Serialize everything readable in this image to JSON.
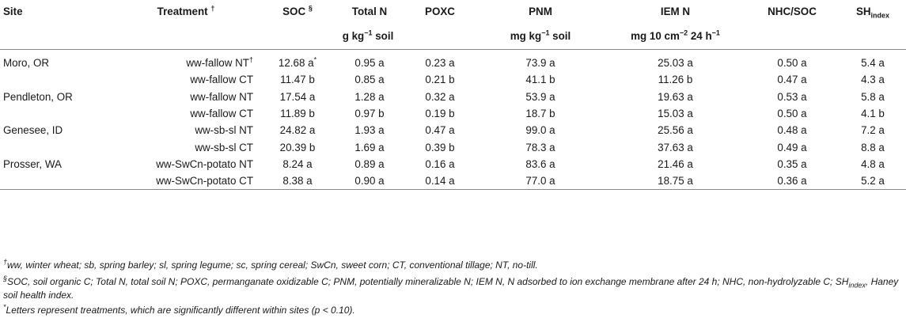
{
  "header": {
    "site": "Site",
    "treatment": "Treatment",
    "treatment_mark": "†",
    "soc": "SOC",
    "soc_mark": "§",
    "total_n": "Total N",
    "poxc": "POXC",
    "pnm": "PNM",
    "iem_n": "IEM N",
    "nhc_soc": "NHC/SOC",
    "sh_base": "SH",
    "sh_sub": "index"
  },
  "units": {
    "group1_a": "g kg",
    "group1_exp": "−1",
    "group1_b": " soil",
    "group2_a": "mg kg",
    "group2_exp": "−1",
    "group2_b": " soil",
    "group3_a": "mg 10 cm",
    "group3_exp1": "−2",
    "group3_b": " 24 h",
    "group3_exp2": "−1"
  },
  "rows": [
    {
      "site": "Moro, OR",
      "treatment": "ww-fallow NT",
      "treatment_mark": "†",
      "soc": "12.68 a",
      "soc_mark": "*",
      "total_n": "0.95 a",
      "poxc": "0.23 a",
      "pnm": "73.9 a",
      "iem_n": "25.03 a",
      "nhc_soc": "0.50 a",
      "sh": "5.4 a"
    },
    {
      "site": "",
      "treatment": "ww-fallow CT",
      "treatment_mark": "",
      "soc": "11.47 b",
      "soc_mark": "",
      "total_n": "0.85 a",
      "poxc": "0.21 b",
      "pnm": "41.1 b",
      "iem_n": "11.26 b",
      "nhc_soc": "0.47 a",
      "sh": "4.3 a"
    },
    {
      "site": "Pendleton, OR",
      "treatment": "ww-fallow NT",
      "treatment_mark": "",
      "soc": "17.54 a",
      "soc_mark": "",
      "total_n": "1.28 a",
      "poxc": "0.32 a",
      "pnm": "53.9 a",
      "iem_n": "19.63 a",
      "nhc_soc": "0.53 a",
      "sh": "5.8 a"
    },
    {
      "site": "",
      "treatment": "ww-fallow CT",
      "treatment_mark": "",
      "soc": "11.89 b",
      "soc_mark": "",
      "total_n": "0.97 b",
      "poxc": "0.19 b",
      "pnm": "18.7 b",
      "iem_n": "15.03 a",
      "nhc_soc": "0.50 a",
      "sh": "4.1 b"
    },
    {
      "site": "Genesee, ID",
      "treatment": "ww-sb-sl NT",
      "treatment_mark": "",
      "soc": "24.82 a",
      "soc_mark": "",
      "total_n": "1.93 a",
      "poxc": "0.47 a",
      "pnm": "99.0 a",
      "iem_n": "25.56 a",
      "nhc_soc": "0.48 a",
      "sh": "7.2 a"
    },
    {
      "site": "",
      "treatment": "ww-sb-sl CT",
      "treatment_mark": "",
      "soc": "20.39 b",
      "soc_mark": "",
      "total_n": "1.69 a",
      "poxc": "0.39 b",
      "pnm": "78.3 a",
      "iem_n": "37.63 a",
      "nhc_soc": "0.49 a",
      "sh": "8.8 a"
    },
    {
      "site": "Prosser, WA",
      "treatment": "ww-SwCn-potato NT",
      "treatment_mark": "",
      "soc": "8.24 a",
      "soc_mark": "",
      "total_n": "0.89 a",
      "poxc": "0.16 a",
      "pnm": "83.6 a",
      "iem_n": "21.46 a",
      "nhc_soc": "0.35 a",
      "sh": "4.8 a"
    },
    {
      "site": "",
      "treatment": "ww-SwCn-potato CT",
      "treatment_mark": "",
      "soc": "8.38 a",
      "soc_mark": "",
      "total_n": "0.90 a",
      "poxc": "0.14 a",
      "pnm": "77.0 a",
      "iem_n": "18.75 a",
      "nhc_soc": "0.36 a",
      "sh": "5.2 a"
    }
  ],
  "footnotes": {
    "fn1_mark": "†",
    "fn1": "ww, winter wheat; sb, spring barley; sl, spring legume; sc, spring cereal; SwCn, sweet corn; CT, conventional tillage; NT, no-till.",
    "fn2_mark": "§",
    "fn2_a": "SOC, soil organic C; Total N, total soil N; POXC, permanganate oxidizable C; PNM, potentially mineralizable N; IEM N, N adsorbed to ion exchange membrane after 24 h; NHC, non-hydrolyzable C; SH",
    "fn2_sub": "index",
    "fn2_b": ", Haney soil health index.",
    "fn3_mark": "*",
    "fn3": "Letters represent treatments, which are significantly different within sites (p < 0.10)."
  }
}
